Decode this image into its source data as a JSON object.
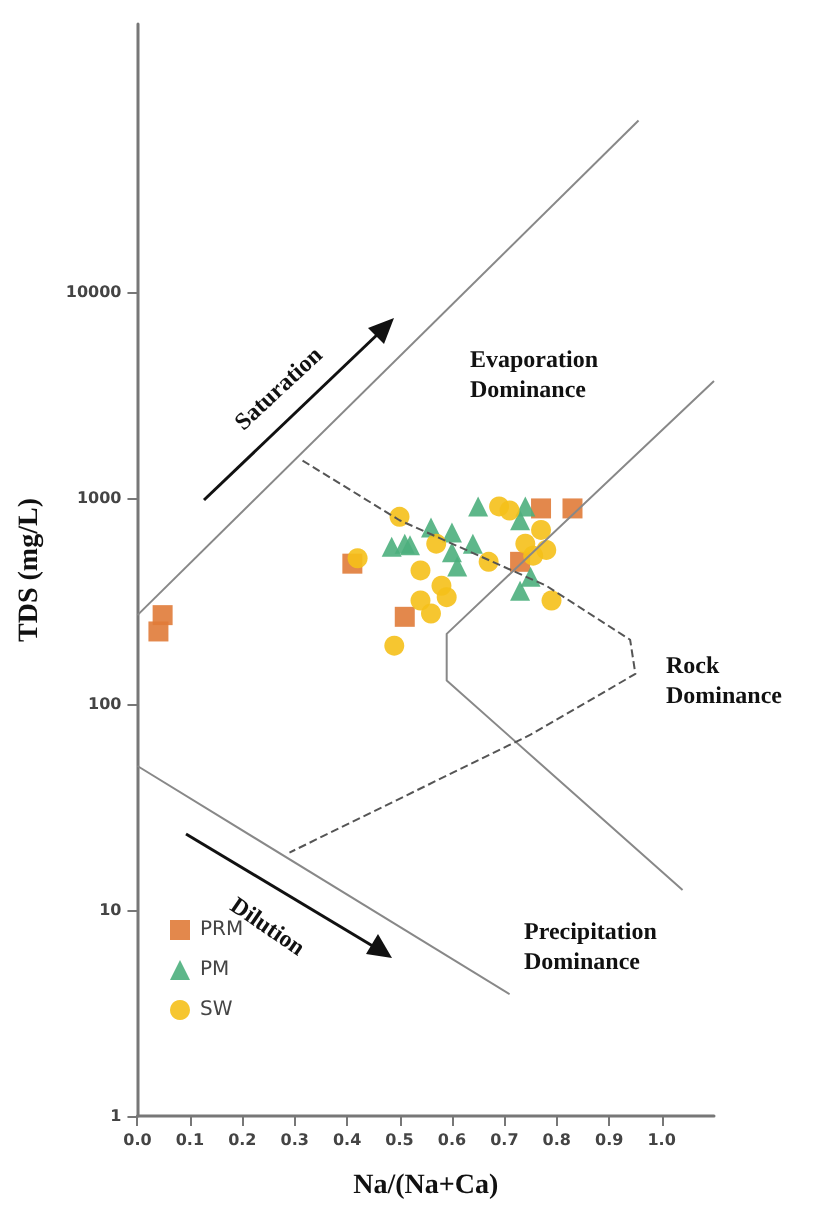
{
  "chart_data": {
    "type": "scatter",
    "xlabel": "Na/(Na+Ca)",
    "ylabel": "TDS (mg/L)",
    "xlim": [
      0,
      1.1
    ],
    "ylim": [
      1,
      200000
    ],
    "log": "y",
    "grid": false,
    "legend": "bottom left",
    "xticks": [
      {
        "value": 0,
        "label": "0.0"
      },
      {
        "value": 0.1,
        "label": "0.1"
      },
      {
        "value": 0.2,
        "label": "0.2"
      },
      {
        "value": 0.3,
        "label": "0.3"
      },
      {
        "value": 0.4,
        "label": "0.4"
      },
      {
        "value": 0.5,
        "label": "0.5"
      },
      {
        "value": 0.6,
        "label": "0.6"
      },
      {
        "value": 0.7,
        "label": "0.7"
      },
      {
        "value": 0.8,
        "label": "0.8"
      },
      {
        "value": 0.9,
        "label": "0.9"
      },
      {
        "value": 1,
        "label": "1.0"
      }
    ],
    "yticks": [
      1,
      10,
      100,
      1000,
      10000
    ],
    "annotations": [
      "Saturation",
      "Evaporation Dominance",
      "Rock Dominance",
      "Dilution",
      "Precipitation Dominance"
    ],
    "series": [
      {
        "name": "PRM",
        "color": "#e07b39",
        "marker": "square",
        "x": [
          0.048,
          0.04,
          0.41,
          0.51,
          0.73,
          0.77,
          0.83
        ],
        "values": [
          270,
          225,
          480,
          265,
          490,
          890,
          890
        ]
      },
      {
        "name": "PM",
        "color": "#4caf7d",
        "marker": "triangle",
        "x": [
          0.485,
          0.51,
          0.52,
          0.56,
          0.6,
          0.6,
          0.61,
          0.64,
          0.65,
          0.74,
          0.73,
          0.75,
          0.73
        ],
        "values": [
          580,
          600,
          590,
          720,
          680,
          545,
          465,
          600,
          910,
          910,
          780,
          415,
          355
        ]
      },
      {
        "name": "SW",
        "color": "#f5c01a",
        "marker": "circle",
        "x": [
          0.42,
          0.5,
          0.57,
          0.54,
          0.54,
          0.58,
          0.59,
          0.56,
          0.49,
          0.67,
          0.69,
          0.71,
          0.74,
          0.77,
          0.78,
          0.79,
          0.755
        ],
        "values": [
          510,
          810,
          600,
          445,
          318,
          375,
          330,
          275,
          192,
          490,
          910,
          870,
          600,
          700,
          560,
          318,
          525
        ]
      },
      {
        "type": "line",
        "color": "#888888",
        "line_style": "solid",
        "marker": "none",
        "x": [
          0,
          0.956
        ],
        "values": [
          270,
          68000
        ]
      },
      {
        "type": "line",
        "color": "#888888",
        "line_style": "solid",
        "marker": "none",
        "x": [
          1.1,
          0.59,
          0.59,
          1.04
        ],
        "values": [
          3700,
          219,
          130,
          12.5
        ]
      },
      {
        "type": "line",
        "color": "#888888",
        "line_style": "solid",
        "marker": "none",
        "x": [
          0,
          0.71
        ],
        "values": [
          50,
          3.9
        ]
      },
      {
        "type": "line",
        "color": "#555555",
        "line_style": "dashed",
        "marker": "none",
        "x": [
          0.315,
          0.5,
          0.78,
          0.94,
          0.95,
          0.75,
          0.29
        ],
        "values": [
          1520,
          780,
          375,
          205,
          140,
          71,
          19
        ]
      }
    ]
  }
}
